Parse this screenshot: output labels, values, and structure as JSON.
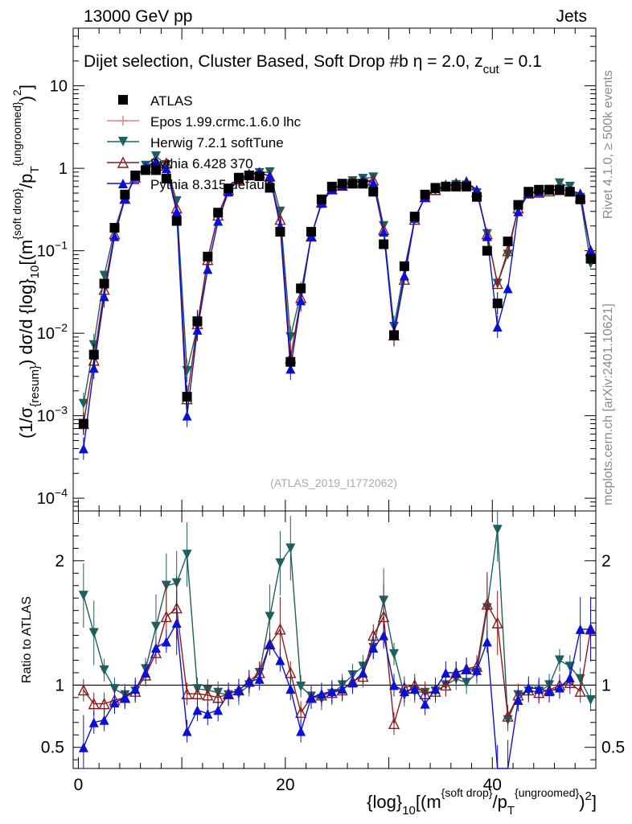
{
  "header": {
    "left": "13000 GeV pp",
    "right": "Jets"
  },
  "side_labels": {
    "top": "Rivet 4.1.0, ≥ 500k events",
    "bottom": "mcplots.cern.ch [arXiv:2401.10621]"
  },
  "chart_data": {
    "type": "scatter",
    "title": "Dijet selection, Cluster Based, Soft Drop #b",
    "title_suffix": "η = 2.0, z",
    "title_sub": "cut",
    "title_tail": " = 0.1",
    "analysis_id": "(ATLAS_2019_I1772062)",
    "xlabel": "{log}10[(m^{soft drop}/p_T^{ungroomed})^2]",
    "xlabel_parts": {
      "a": "{log}",
      "b": "10",
      "c": "[(m",
      "d": "{soft drop}",
      "e": "/p",
      "f": "T",
      "g": "{ungroomed}",
      "h": ")",
      "i": "2",
      "j": "]"
    },
    "ylabel_parts": {
      "a": "(1/σ",
      "b": "{resum}",
      "c": ") dσ/d {log}",
      "d": "10",
      "e": "[(m",
      "f": "{soft drop}",
      "g": "/p",
      "h": "T",
      "i": "{ungroomed}",
      "j": ")",
      "k": "2",
      "l": "]"
    },
    "ratio_ylabel": "Ratio to ATLAS",
    "xlim": [
      -0.5,
      50
    ],
    "ylim": [
      7e-05,
      50
    ],
    "ratio_ylim": [
      0.33,
      2.4
    ],
    "x_ticks": [
      0,
      20,
      40
    ],
    "y_ticks": [
      {
        "value": 0.0001,
        "base": "10",
        "exp": "−4"
      },
      {
        "value": 0.001,
        "base": "10",
        "exp": "−3"
      },
      {
        "value": 0.01,
        "base": "10",
        "exp": "−2"
      },
      {
        "value": 0.1,
        "base": "10",
        "exp": "−1"
      },
      {
        "value": 1,
        "base": "1",
        "exp": ""
      },
      {
        "value": 10,
        "base": "10",
        "exp": ""
      }
    ],
    "ratio_ticks": [
      {
        "value": 0.5,
        "label": "0.5"
      },
      {
        "value": 1,
        "label": "1"
      },
      {
        "value": 2,
        "label": "2"
      }
    ],
    "x": [
      0.5,
      1.5,
      2.5,
      3.5,
      4.5,
      5.5,
      6.5,
      7.5,
      8.5,
      9.5,
      10.5,
      11.5,
      12.5,
      13.5,
      14.5,
      15.5,
      16.5,
      17.5,
      18.5,
      19.5,
      20.5,
      21.5,
      22.5,
      23.5,
      24.5,
      25.5,
      26.5,
      27.5,
      28.5,
      29.5,
      30.5,
      31.5,
      32.5,
      33.5,
      34.5,
      35.5,
      36.5,
      37.5,
      38.5,
      39.5,
      40.5,
      41.5,
      42.5,
      43.5,
      44.5,
      45.5,
      46.5,
      47.5,
      48.5,
      49.5
    ],
    "series": [
      {
        "name": "ATLAS",
        "color": "#000000",
        "marker": "square",
        "values": [
          0.0008,
          0.0055,
          0.04,
          0.19,
          0.48,
          0.82,
          0.95,
          0.95,
          0.75,
          0.23,
          0.0017,
          0.014,
          0.085,
          0.29,
          0.57,
          0.77,
          0.82,
          0.8,
          0.58,
          0.17,
          0.0045,
          0.035,
          0.17,
          0.42,
          0.6,
          0.65,
          0.65,
          0.65,
          0.52,
          0.12,
          0.0095,
          0.065,
          0.26,
          0.48,
          0.58,
          0.6,
          0.6,
          0.6,
          0.45,
          0.1,
          0.023,
          0.13,
          0.36,
          0.52,
          0.55,
          0.55,
          0.55,
          0.52,
          0.42,
          0.08
        ],
        "ratios": [
          1,
          1,
          1,
          1,
          1,
          1,
          1,
          1,
          1,
          1,
          1,
          1,
          1,
          1,
          1,
          1,
          1,
          1,
          1,
          1,
          1,
          1,
          1,
          1,
          1,
          1,
          1,
          1,
          1,
          1,
          1,
          1,
          1,
          1,
          1,
          1,
          1,
          1,
          1,
          1,
          1,
          1,
          1,
          1,
          1,
          1,
          1,
          1,
          1,
          1
        ]
      },
      {
        "name": "Epos 1.99.crmc.1.6.0 lhc",
        "color": "#f08080",
        "marker": "cross",
        "values": [],
        "ratios": []
      },
      {
        "name": "Herwig 7.2.1 softTune",
        "color": "#1f5f5f",
        "marker": "tri-down",
        "values": [
          0.0014,
          0.0072,
          0.05,
          0.18,
          0.44,
          0.78,
          1.08,
          1.4,
          1.1,
          0.4,
          0.0035,
          0.012,
          0.08,
          0.27,
          0.52,
          0.72,
          0.82,
          0.88,
          0.9,
          0.3,
          0.009,
          0.031,
          0.15,
          0.37,
          0.56,
          0.65,
          0.7,
          0.75,
          0.78,
          0.2,
          0.012,
          0.06,
          0.24,
          0.45,
          0.54,
          0.6,
          0.63,
          0.62,
          0.5,
          0.16,
          0.04,
          0.09,
          0.33,
          0.5,
          0.52,
          0.55,
          0.66,
          0.6,
          0.44,
          0.07
        ],
        "ratios": [
          1.72,
          1.42,
          1.12,
          0.97,
          0.92,
          0.95,
          1.13,
          1.47,
          1.8,
          1.82,
          2.05,
          0.97,
          0.96,
          0.94,
          0.92,
          0.93,
          1.0,
          1.1,
          1.55,
          1.98,
          2.1,
          0.99,
          0.91,
          0.89,
          0.93,
          1.0,
          1.08,
          1.15,
          1.3,
          1.68,
          1.25,
          0.92,
          0.95,
          0.94,
          0.95,
          1.0,
          1.05,
          1.02,
          1.1,
          1.62,
          2.25,
          0.72,
          0.92,
          0.95,
          0.95,
          1.0,
          1.2,
          1.15,
          1.05,
          0.88
        ]
      },
      {
        "name": "Pythia 6.428 370",
        "color": "#8b1a1a",
        "marker": "tri-up-open",
        "values": [
          0.0008,
          0.0047,
          0.034,
          0.16,
          0.43,
          0.78,
          1.02,
          1.2,
          1.15,
          0.33,
          0.0016,
          0.013,
          0.078,
          0.27,
          0.55,
          0.74,
          0.84,
          0.88,
          0.8,
          0.24,
          0.005,
          0.027,
          0.15,
          0.39,
          0.56,
          0.62,
          0.67,
          0.7,
          0.72,
          0.18,
          0.0095,
          0.045,
          0.24,
          0.45,
          0.55,
          0.62,
          0.65,
          0.68,
          0.52,
          0.16,
          0.04,
          0.1,
          0.33,
          0.5,
          0.51,
          0.53,
          0.55,
          0.53,
          0.45,
          0.1
        ],
        "ratios": [
          0.96,
          0.85,
          0.85,
          0.88,
          0.9,
          0.95,
          1.08,
          1.26,
          1.55,
          1.62,
          0.93,
          0.93,
          0.92,
          0.9,
          0.93,
          0.96,
          1.03,
          1.1,
          1.33,
          1.45,
          1.1,
          0.78,
          0.9,
          0.92,
          0.94,
          0.96,
          1.03,
          1.07,
          1.4,
          1.55,
          0.69,
          0.98,
          1.0,
          0.93,
          0.95,
          1.0,
          1.1,
          1.13,
          1.15,
          1.65,
          1.5,
          0.75,
          0.92,
          0.96,
          0.94,
          0.96,
          1.0,
          1.02,
          0.95,
          1.45
        ]
      },
      {
        "name": "Pythia 8.315 default",
        "color": "#0a10d8",
        "marker": "tri-up",
        "values": [
          0.0004,
          0.0038,
          0.028,
          0.15,
          0.43,
          0.8,
          1.05,
          1.22,
          1.0,
          0.3,
          0.001,
          0.011,
          0.06,
          0.23,
          0.52,
          0.75,
          0.85,
          0.9,
          0.8,
          0.2,
          0.0037,
          0.025,
          0.15,
          0.38,
          0.56,
          0.62,
          0.66,
          0.72,
          0.67,
          0.17,
          0.01,
          0.05,
          0.25,
          0.45,
          0.57,
          0.6,
          0.65,
          0.68,
          0.55,
          0.15,
          0.012,
          0.035,
          0.3,
          0.5,
          0.52,
          0.55,
          0.55,
          0.53,
          0.5,
          0.1
        ],
        "ratios": [
          0.5,
          0.7,
          0.72,
          0.86,
          0.9,
          0.97,
          1.1,
          1.3,
          1.35,
          1.5,
          0.63,
          0.8,
          0.77,
          0.8,
          0.93,
          0.96,
          1.03,
          1.05,
          1.33,
          1.2,
          0.97,
          0.63,
          0.9,
          0.93,
          0.95,
          0.97,
          1.02,
          1.1,
          1.3,
          1.4,
          1.0,
          0.95,
          0.97,
          0.85,
          0.97,
          1.1,
          1.1,
          1.13,
          1.12,
          1.35,
          0.26,
          0.3,
          0.88,
          0.98,
          0.97,
          0.95,
          0.98,
          1.06,
          1.45,
          1.45
        ]
      }
    ]
  }
}
